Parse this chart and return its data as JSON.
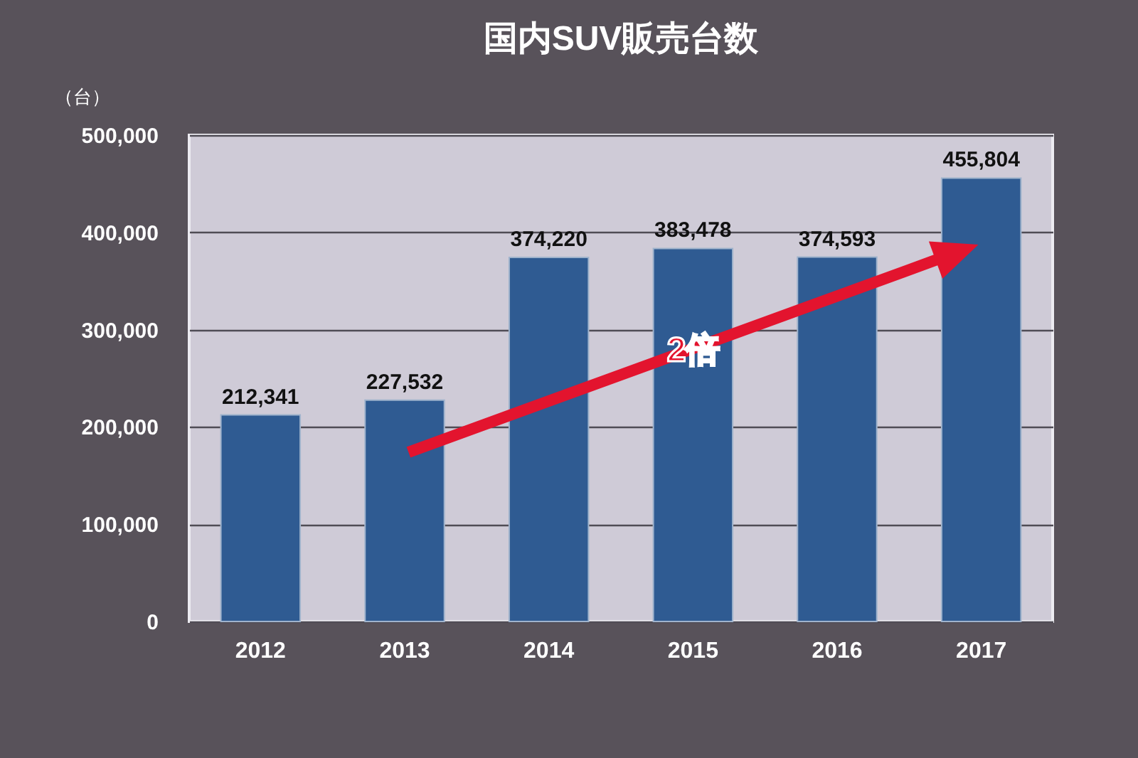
{
  "chart_data": {
    "type": "bar",
    "title": "国内SUV販売台数",
    "ylabel": "（台）",
    "categories": [
      "2012",
      "2013",
      "2014",
      "2015",
      "2016",
      "2017"
    ],
    "series": [
      {
        "color": "#2f5b92",
        "values": [
          212341,
          227532,
          374220,
          383478,
          374593,
          455804
        ],
        "value_labels": [
          "212,341",
          "227,532",
          "374,220",
          "383,478",
          "374,593",
          "455,804"
        ]
      }
    ],
    "ylim": [
      0,
      500000
    ],
    "yticks": [
      0,
      {
        "value": 100000,
        "label": "100,000"
      },
      {
        "value": 200000,
        "label": "200,000"
      },
      {
        "value": 300000,
        "label": "300,000"
      },
      {
        "value": 400000,
        "label": "400,000"
      },
      {
        "value": 500000,
        "label": "500,000"
      }
    ],
    "grid": "y",
    "annotations": [
      "2倍"
    ]
  }
}
